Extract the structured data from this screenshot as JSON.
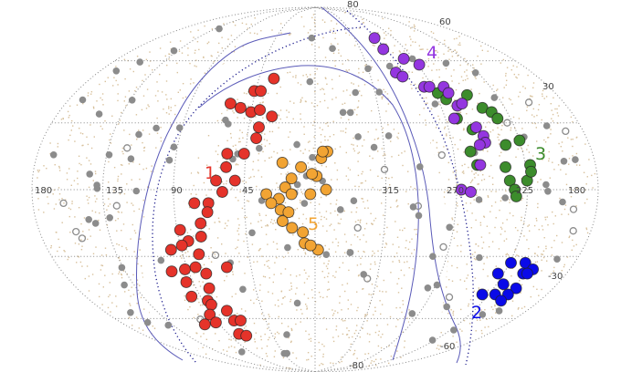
{
  "chart_data": {
    "type": "scatter",
    "projection": "all-sky (Hammer-like), longitude increasing to the left",
    "title": "",
    "xlabel": "",
    "ylabel": "",
    "lon_tick_labels": [
      "180",
      "135",
      "90",
      "45",
      "315",
      "270",
      "225",
      "180"
    ],
    "lat_tick_labels": [
      "80",
      "60",
      "30",
      "-30",
      "-60",
      "-80"
    ],
    "grid": true,
    "colors": {
      "dust": "#d8c19c",
      "field": "#8c8c8c",
      "grid": "#888888",
      "contour": "#5a5ab8",
      "dotted_curve": "#1a1a8c"
    },
    "series": [
      {
        "name": "1",
        "color": "#e5332a",
        "points": [
          [
            33,
            51
          ],
          [
            46,
            45
          ],
          [
            41,
            45
          ],
          [
            61,
            39
          ],
          [
            53,
            37
          ],
          [
            45,
            35
          ],
          [
            39,
            36
          ],
          [
            30,
            33
          ],
          [
            38,
            28
          ],
          [
            39,
            23
          ],
          [
            57,
            16
          ],
          [
            46,
            16
          ],
          [
            57,
            10
          ],
          [
            51,
            4
          ],
          [
            63,
            4
          ],
          [
            59,
            -1
          ],
          [
            77,
            -6
          ],
          [
            68,
            -6
          ],
          [
            69,
            -10
          ],
          [
            74,
            -15
          ],
          [
            88,
            -18
          ],
          [
            84,
            -23
          ],
          [
            75,
            -21
          ],
          [
            97,
            -27
          ],
          [
            89,
            -25
          ],
          [
            79,
            -29
          ],
          [
            102,
            -37
          ],
          [
            92,
            -36
          ],
          [
            84,
            -35
          ],
          [
            78,
            -38
          ],
          [
            62,
            -35
          ],
          [
            95,
            -42
          ],
          [
            80,
            -45
          ],
          [
            97,
            -49
          ],
          [
            86,
            -51
          ],
          [
            85,
            -53
          ],
          [
            92,
            -58
          ],
          [
            104,
            -63
          ],
          [
            75,
            -56
          ],
          [
            74,
            -61
          ],
          [
            68,
            -61
          ],
          [
            92,
            -62
          ],
          [
            79,
            -68
          ],
          [
            73,
            -69
          ]
        ]
      },
      {
        "name": "2",
        "color": "#0a0ae8",
        "points": [
          [
            229,
            -38
          ],
          [
            224,
            -33
          ],
          [
            214,
            -33
          ],
          [
            211,
            -38
          ],
          [
            206,
            -36
          ],
          [
            208,
            -38
          ],
          [
            220,
            -43
          ],
          [
            208,
            -45
          ],
          [
            210,
            -48
          ],
          [
            220,
            -48
          ],
          [
            230,
            -48
          ],
          [
            211,
            -51
          ]
        ]
      },
      {
        "name": "3",
        "color": "#3c8c2c",
        "points": [
          [
            268,
            44
          ],
          [
            264,
            41
          ],
          [
            247,
            43
          ],
          [
            241,
            37
          ],
          [
            236,
            35
          ],
          [
            234,
            32
          ],
          [
            262,
            32
          ],
          [
            254,
            27
          ],
          [
            259,
            17
          ],
          [
            256,
            11
          ],
          [
            235,
            20
          ],
          [
            225,
            22
          ],
          [
            238,
            10
          ],
          [
            222,
            11
          ],
          [
            236,
            4
          ],
          [
            225,
            4
          ],
          [
            233,
            0
          ],
          [
            232,
            -3
          ],
          [
            222,
            8
          ]
        ]
      },
      {
        "name": "4",
        "color": "#9436e0",
        "points": [
          [
            292,
            72
          ],
          [
            292,
            66
          ],
          [
            279,
            61
          ],
          [
            269,
            58
          ],
          [
            293,
            54
          ],
          [
            289,
            52
          ],
          [
            276,
            47
          ],
          [
            272,
            47
          ],
          [
            261,
            47
          ],
          [
            260,
            44
          ],
          [
            258,
            38
          ],
          [
            254,
            39
          ],
          [
            264,
            32
          ],
          [
            251,
            28
          ],
          [
            248,
            24
          ],
          [
            248,
            21
          ],
          [
            252,
            20
          ],
          [
            254,
            11
          ],
          [
            267,
            0
          ],
          [
            261,
            -1
          ]
        ]
      },
      {
        "name": "5",
        "color": "#f2a433",
        "points": [
          [
            21,
            12
          ],
          [
            15,
            5
          ],
          [
            9,
            10
          ],
          [
            359,
            6
          ],
          [
            356,
            14
          ],
          [
            352,
            17
          ],
          [
            355,
            17
          ],
          [
            31,
            -2
          ],
          [
            23,
            -4
          ],
          [
            19,
            1
          ],
          [
            15,
            -2
          ],
          [
            3,
            -2
          ],
          [
            28,
            -6
          ],
          [
            22,
            -9
          ],
          [
            17,
            -10
          ],
          [
            21,
            -14
          ],
          [
            15,
            -17
          ],
          [
            8,
            -19
          ],
          [
            7,
            -24
          ],
          [
            358,
            -27
          ],
          [
            3,
            -25
          ],
          [
            353,
            0
          ],
          [
            2,
            7
          ]
        ]
      }
    ]
  }
}
